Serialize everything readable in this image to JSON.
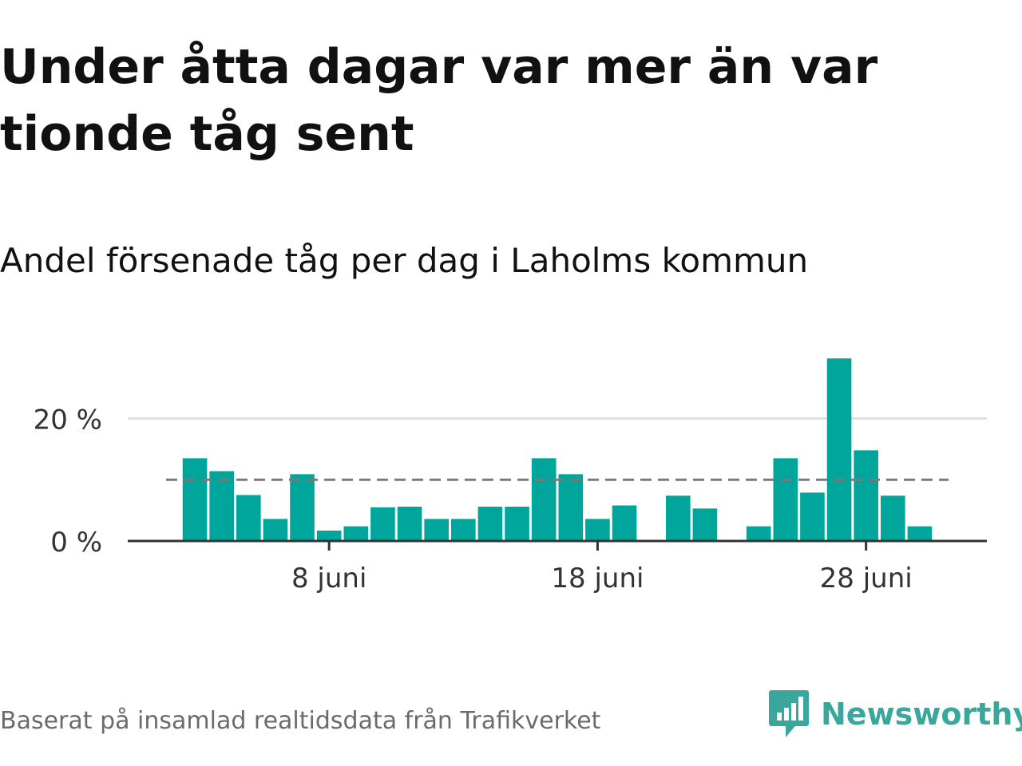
{
  "title": "Under åtta dagar var mer än var tionde tåg sent",
  "subtitle": "Andel försenade tåg per dag i Laholms kommun",
  "footer": {
    "source": "Baserat på insamlad realtidsdata från Trafikverket",
    "brand_name": "Newsworthy",
    "brand_icon": "bar-chart-speech-bubble-icon"
  },
  "colors": {
    "bar": "#00a69b",
    "reference_line": "#7a7a7a",
    "gridline": "#e0e0e0",
    "axis": "#333333",
    "text": "#111111",
    "brand": "#3aa79c"
  },
  "chart_data": {
    "type": "bar",
    "xlabel": "",
    "ylabel": "",
    "x_start_day": 1,
    "x_end_day": 30,
    "x_ticks": [
      {
        "day": 8,
        "label": "8 juni"
      },
      {
        "day": 18,
        "label": "18 juni"
      },
      {
        "day": 28,
        "label": "28 juni"
      }
    ],
    "y_ticks": [
      {
        "value": 0,
        "label": "0 %"
      },
      {
        "value": 20,
        "label": "20 %"
      }
    ],
    "ylim": [
      0,
      31
    ],
    "reference_line": {
      "value": 10,
      "style": "dashed"
    },
    "days": [
      3,
      4,
      5,
      6,
      7,
      8,
      9,
      10,
      11,
      12,
      13,
      14,
      15,
      16,
      17,
      18,
      19,
      20,
      21,
      22,
      23,
      24,
      25,
      26,
      27,
      28,
      29,
      30
    ],
    "values": [
      13.5,
      11.4,
      7.5,
      3.6,
      10.9,
      1.7,
      2.4,
      5.5,
      5.6,
      3.6,
      3.6,
      5.6,
      5.6,
      13.5,
      10.9,
      3.6,
      5.8,
      0,
      7.4,
      5.3,
      0,
      2.4,
      13.5,
      7.9,
      29.8,
      14.8,
      7.4,
      2.4
    ]
  }
}
